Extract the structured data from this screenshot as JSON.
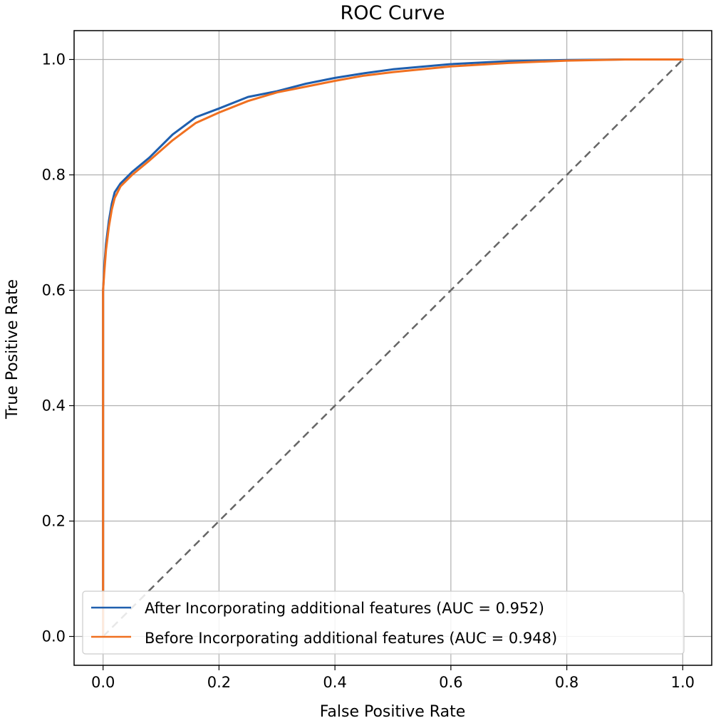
{
  "chart_data": {
    "type": "line",
    "title": "ROC Curve",
    "xlabel": "False Positive Rate",
    "ylabel": "True Positive Rate",
    "xlim": [
      -0.05,
      1.05
    ],
    "ylim": [
      -0.05,
      1.05
    ],
    "xticks": [
      0.0,
      0.2,
      0.4,
      0.6,
      0.8,
      1.0
    ],
    "yticks": [
      0.0,
      0.2,
      0.4,
      0.6,
      0.8,
      1.0
    ],
    "xtick_labels": [
      "0.0",
      "0.2",
      "0.4",
      "0.6",
      "0.8",
      "1.0"
    ],
    "ytick_labels": [
      "0.0",
      "0.2",
      "0.4",
      "0.6",
      "0.8",
      "1.0"
    ],
    "grid": true,
    "legend_position": "lower-right",
    "series": [
      {
        "name": "After Incorporating additional features (AUC = 0.952)",
        "color": "#1f5fae",
        "x": [
          0,
          0,
          0.002,
          0.005,
          0.01,
          0.015,
          0.02,
          0.03,
          0.05,
          0.08,
          0.12,
          0.16,
          0.2,
          0.25,
          0.3,
          0.35,
          0.4,
          0.45,
          0.5,
          0.6,
          0.7,
          0.8,
          0.9,
          1.0
        ],
        "y": [
          0,
          0.6,
          0.64,
          0.68,
          0.72,
          0.75,
          0.77,
          0.785,
          0.805,
          0.83,
          0.87,
          0.9,
          0.915,
          0.935,
          0.945,
          0.958,
          0.968,
          0.976,
          0.983,
          0.992,
          0.997,
          0.999,
          1.0,
          1.0
        ]
      },
      {
        "name": "Before Incorporating additional features  (AUC = 0.948)",
        "color": "#f07020",
        "x": [
          0,
          0,
          0.002,
          0.005,
          0.01,
          0.015,
          0.02,
          0.03,
          0.05,
          0.08,
          0.12,
          0.16,
          0.2,
          0.25,
          0.3,
          0.35,
          0.4,
          0.45,
          0.5,
          0.6,
          0.7,
          0.8,
          0.9,
          1.0
        ],
        "y": [
          0,
          0.6,
          0.63,
          0.67,
          0.71,
          0.74,
          0.76,
          0.78,
          0.8,
          0.825,
          0.86,
          0.89,
          0.908,
          0.928,
          0.943,
          0.953,
          0.963,
          0.972,
          0.978,
          0.988,
          0.994,
          0.998,
          1.0,
          1.0
        ]
      }
    ],
    "reference_line": {
      "name": "chance",
      "x": [
        0,
        1
      ],
      "y": [
        0,
        1
      ],
      "color": "#666666",
      "style": "dashed"
    }
  },
  "colors": {
    "grid": "#b0b0b0",
    "axes": "#000000"
  }
}
